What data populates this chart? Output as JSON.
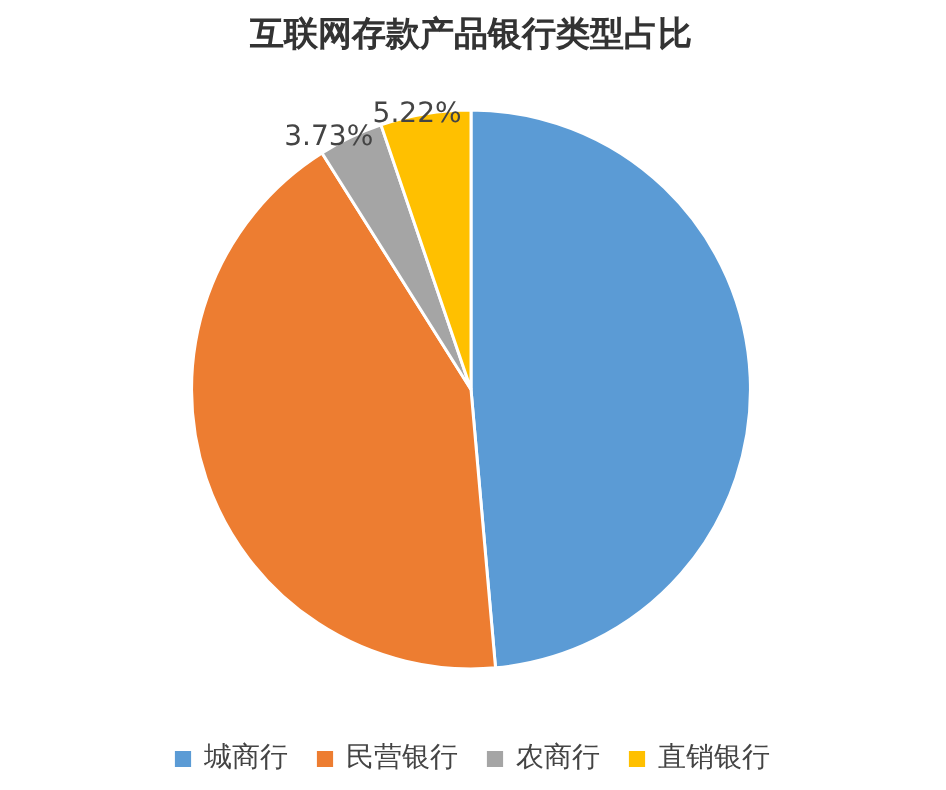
{
  "chart_data": {
    "type": "pie",
    "title": "互联网存款产品银行类型占比",
    "categories": [
      "城商行",
      "民营银行",
      "农商行",
      "直销银行"
    ],
    "values": [
      48.6,
      42.45,
      3.73,
      5.22
    ],
    "colors": [
      "#5b9bd5",
      "#ed7d31",
      "#a5a5a5",
      "#ffc000"
    ],
    "value_labels": [
      null,
      null,
      "3.73%",
      "5.22%"
    ],
    "legend": "bottom"
  }
}
